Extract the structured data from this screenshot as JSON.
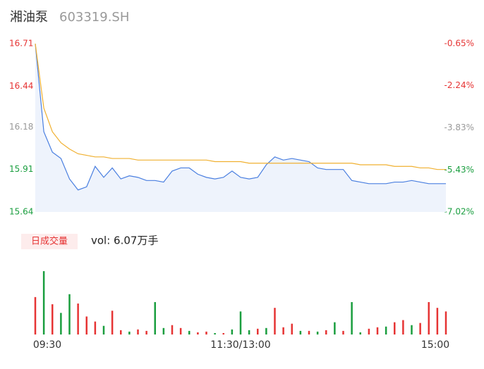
{
  "chart_data": {
    "type": "line",
    "title": "湘油泵",
    "subtitle": "603319.SH",
    "categories": [
      "09:30",
      null,
      null,
      null,
      null,
      null,
      null,
      null,
      null,
      null,
      null,
      null,
      null,
      null,
      null,
      null,
      null,
      null,
      null,
      null,
      null,
      null,
      null,
      null,
      "11:30/13:00",
      null,
      null,
      null,
      null,
      null,
      null,
      null,
      null,
      null,
      null,
      null,
      null,
      null,
      null,
      null,
      null,
      null,
      null,
      null,
      null,
      null,
      null,
      null,
      "15:00"
    ],
    "series": [
      {
        "name": "price",
        "color": "#4a7fe0",
        "values": [
          16.71,
          16.15,
          16.02,
          15.98,
          15.85,
          15.78,
          15.8,
          15.93,
          15.86,
          15.92,
          15.85,
          15.87,
          15.86,
          15.84,
          15.84,
          15.83,
          15.9,
          15.92,
          15.92,
          15.88,
          15.86,
          15.85,
          15.86,
          15.9,
          15.86,
          15.85,
          15.86,
          15.94,
          15.99,
          15.97,
          15.98,
          15.97,
          15.96,
          15.92,
          15.91,
          15.91,
          15.91,
          15.84,
          15.83,
          15.82,
          15.82,
          15.82,
          15.83,
          15.83,
          15.84,
          15.83,
          15.82,
          15.82,
          15.82
        ]
      },
      {
        "name": "average",
        "color": "#f0b030",
        "values": [
          16.71,
          16.3,
          16.15,
          16.08,
          16.04,
          16.01,
          16.0,
          15.99,
          15.99,
          15.98,
          15.98,
          15.98,
          15.97,
          15.97,
          15.97,
          15.97,
          15.97,
          15.97,
          15.97,
          15.97,
          15.97,
          15.96,
          15.96,
          15.96,
          15.96,
          15.95,
          15.95,
          15.95,
          15.95,
          15.95,
          15.95,
          15.95,
          15.95,
          15.95,
          15.95,
          15.95,
          15.95,
          15.95,
          15.94,
          15.94,
          15.94,
          15.94,
          15.93,
          15.93,
          15.93,
          15.92,
          15.92,
          15.91,
          15.91
        ]
      }
    ],
    "ylim": [
      15.64,
      16.71
    ],
    "yticks": [
      16.71,
      16.44,
      16.18,
      15.91,
      15.64
    ],
    "y2lim": [
      -7.02,
      -0.65
    ],
    "y2ticks": [
      {
        "value": -0.65,
        "label": "-0.65%"
      },
      {
        "value": -2.24,
        "label": "-2.24%"
      },
      {
        "value": -3.83,
        "label": "-3.83%"
      },
      {
        "value": -5.43,
        "label": "-5.43%"
      },
      {
        "value": -7.02,
        "label": "-7.02%"
      }
    ],
    "tick_colors": [
      "#e63434",
      "#e63434",
      "#999999",
      "#1a9e3f",
      "#1a9e3f"
    ],
    "area_color": "#eef3fc",
    "volume_title": "日成交量",
    "volume_label": "vol: 6.07万手",
    "volume": {
      "ylim": [
        0,
        9000
      ],
      "values": [
        5200,
        8800,
        4200,
        3000,
        5600,
        4300,
        2500,
        1800,
        1200,
        3300,
        600,
        400,
        700,
        500,
        4500,
        900,
        1300,
        900,
        500,
        300,
        400,
        200,
        200,
        700,
        3200,
        600,
        800,
        900,
        3700,
        1000,
        1500,
        500,
        500,
        400,
        600,
        1700,
        500,
        4500,
        300,
        800,
        1000,
        1100,
        1700,
        2000,
        1300,
        1600,
        4500,
        3700,
        3200
      ],
      "colors": [
        "#e63434",
        "#1a9e3f",
        "#e63434",
        "#1a9e3f",
        "#1a9e3f",
        "#e63434",
        "#e63434",
        "#e63434",
        "#1a9e3f",
        "#e63434",
        "#e63434",
        "#1a9e3f",
        "#e63434",
        "#e63434",
        "#1a9e3f",
        "#1a9e3f",
        "#e63434",
        "#e63434",
        "#1a9e3f",
        "#e63434",
        "#e63434",
        "#1a9e3f",
        "#e63434",
        "#1a9e3f",
        "#1a9e3f",
        "#1a9e3f",
        "#e63434",
        "#1a9e3f",
        "#e63434",
        "#e63434",
        "#e63434",
        "#1a9e3f",
        "#e63434",
        "#1a9e3f",
        "#e63434",
        "#1a9e3f",
        "#e63434",
        "#1a9e3f",
        "#1a9e3f",
        "#e63434",
        "#e63434",
        "#1a9e3f",
        "#e63434",
        "#e63434",
        "#1a9e3f",
        "#e63434",
        "#e63434",
        "#e63434",
        "#e63434"
      ]
    }
  }
}
